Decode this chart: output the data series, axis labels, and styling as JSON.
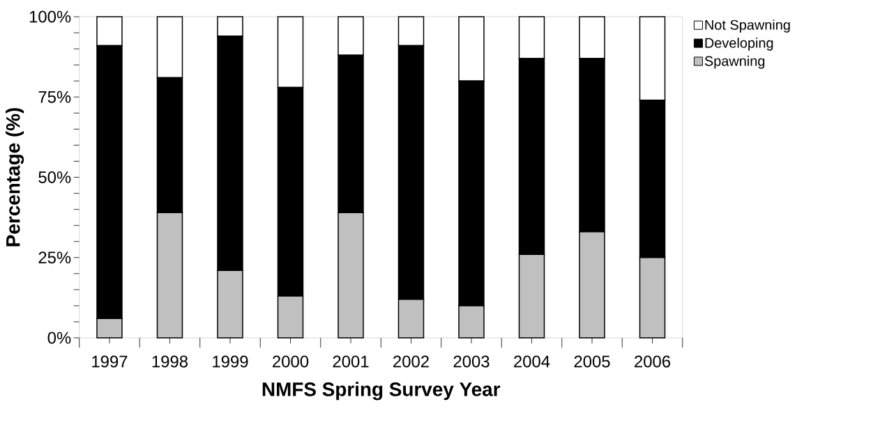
{
  "chart_data": {
    "type": "bar",
    "stacked": true,
    "xlabel": "NMFS Spring Survey Year",
    "ylabel": "Percentage (%)",
    "categories": [
      "1997",
      "1998",
      "1999",
      "2000",
      "2001",
      "2002",
      "2003",
      "2004",
      "2005",
      "2006"
    ],
    "series": [
      {
        "name": "Spawning",
        "color": "#c0c0c0",
        "values": [
          6,
          39,
          21,
          13,
          39,
          12,
          10,
          26,
          33,
          25
        ]
      },
      {
        "name": "Developing",
        "color": "#000000",
        "values": [
          85,
          42,
          73,
          65,
          49,
          79,
          70,
          61,
          54,
          49
        ]
      },
      {
        "name": "Not Spawning",
        "color": "#ffffff",
        "values": [
          9,
          19,
          6,
          22,
          12,
          9,
          20,
          13,
          13,
          26
        ]
      }
    ],
    "ylim": [
      0,
      100
    ],
    "yticks": [
      {
        "value": 0,
        "label": "0%"
      },
      {
        "value": 5,
        "label": null
      },
      {
        "value": 10,
        "label": null
      },
      {
        "value": 15,
        "label": null
      },
      {
        "value": 20,
        "label": null
      },
      {
        "value": 25,
        "label": "25%"
      },
      {
        "value": 30,
        "label": null
      },
      {
        "value": 35,
        "label": null
      },
      {
        "value": 40,
        "label": null
      },
      {
        "value": 45,
        "label": null
      },
      {
        "value": 50,
        "label": "50%"
      },
      {
        "value": 55,
        "label": null
      },
      {
        "value": 60,
        "label": null
      },
      {
        "value": 65,
        "label": null
      },
      {
        "value": 70,
        "label": null
      },
      {
        "value": 75,
        "label": "75%"
      },
      {
        "value": 80,
        "label": null
      },
      {
        "value": 85,
        "label": null
      },
      {
        "value": 90,
        "label": null
      },
      {
        "value": 95,
        "label": null
      },
      {
        "value": 100,
        "label": "100%"
      }
    ],
    "legend": "right"
  }
}
